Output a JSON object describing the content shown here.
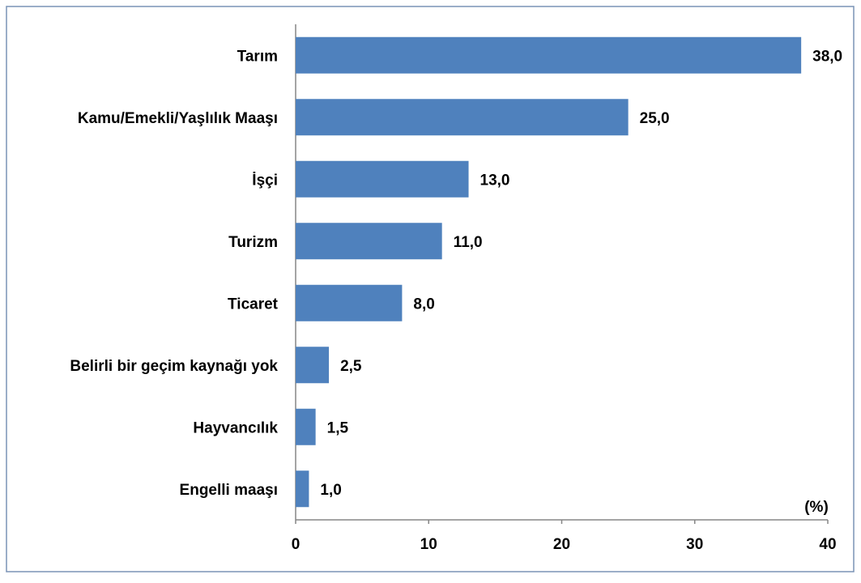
{
  "chart_data": {
    "type": "bar",
    "orientation": "horizontal",
    "categories": [
      "Tarım",
      "Kamu/Emekli/Yaşlılık  Maaşı",
      "İşçi",
      "Turizm",
      "Ticaret",
      "Belirli bir geçim kaynağı yok",
      "Hayvancılık",
      "Engelli maaşı"
    ],
    "values": [
      38,
      25,
      13,
      11,
      8,
      2.5,
      1.5,
      1
    ],
    "value_labels": [
      "38,0",
      "25,0",
      "13,0",
      "11,0",
      "8,0",
      "2,5",
      "1,5",
      "1,0"
    ],
    "color": "#4f81bd",
    "xlabel": "(%)",
    "xlim": [
      0,
      40
    ],
    "xticks": [
      0,
      10,
      20,
      30,
      40
    ],
    "grid": false
  }
}
